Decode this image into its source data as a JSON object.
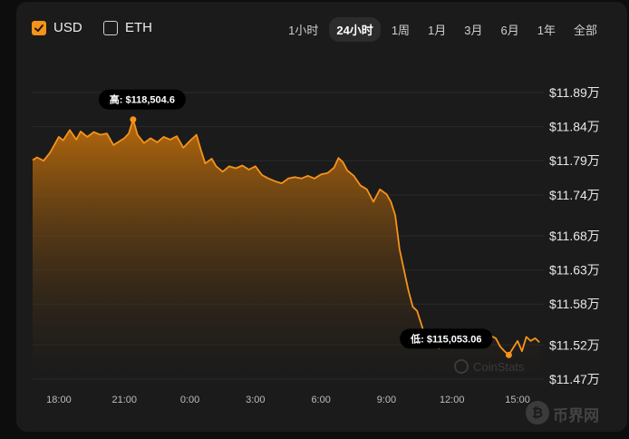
{
  "currency_toggles": [
    {
      "label": "USD",
      "checked": true
    },
    {
      "label": "ETH",
      "checked": false
    }
  ],
  "time_ranges": [
    {
      "label": "1小时",
      "active": false
    },
    {
      "label": "24小时",
      "active": true
    },
    {
      "label": "1周",
      "active": false
    },
    {
      "label": "1月",
      "active": false
    },
    {
      "label": "3月",
      "active": false
    },
    {
      "label": "6月",
      "active": false
    },
    {
      "label": "1年",
      "active": false
    },
    {
      "label": "全部",
      "active": false
    }
  ],
  "watermark": "CoinStats",
  "site_logo": {
    "text": "币界网",
    "icon": "coin-logo-icon"
  },
  "colors": {
    "line": "#f7931a",
    "area_top": "#b86a0c",
    "background": "#1b1b1b"
  },
  "chart_data": {
    "type": "area",
    "currency": "USD",
    "x_tick_labels": [
      "18:00",
      "21:00",
      "0:00",
      "3:00",
      "6:00",
      "9:00",
      "12:00",
      "15:00"
    ],
    "y_tick_labels": [
      "$11.89万",
      "$11.84万",
      "$11.79万",
      "$11.74万",
      "$11.68万",
      "$11.63万",
      "$11.58万",
      "$11.52万",
      "$11.47万"
    ],
    "ylim": [
      114700,
      118900
    ],
    "xlim": [
      16.8,
      40.2
    ],
    "x_unit": "hours (24 = 0:00 next day)",
    "values": [
      [
        16.8,
        117910
      ],
      [
        17.0,
        117950
      ],
      [
        17.3,
        117900
      ],
      [
        17.6,
        118020
      ],
      [
        18.0,
        118250
      ],
      [
        18.2,
        118200
      ],
      [
        18.5,
        118350
      ],
      [
        18.8,
        118210
      ],
      [
        19.0,
        118330
      ],
      [
        19.3,
        118250
      ],
      [
        19.6,
        118320
      ],
      [
        19.9,
        118280
      ],
      [
        20.2,
        118300
      ],
      [
        20.5,
        118130
      ],
      [
        20.8,
        118190
      ],
      [
        21.0,
        118230
      ],
      [
        21.2,
        118300
      ],
      [
        21.4,
        118504.6
      ],
      [
        21.6,
        118280
      ],
      [
        21.9,
        118160
      ],
      [
        22.2,
        118230
      ],
      [
        22.5,
        118170
      ],
      [
        22.8,
        118250
      ],
      [
        23.1,
        118210
      ],
      [
        23.4,
        118260
      ],
      [
        23.7,
        118090
      ],
      [
        24.0,
        118190
      ],
      [
        24.3,
        118280
      ],
      [
        24.5,
        118060
      ],
      [
        24.7,
        117860
      ],
      [
        25.0,
        117930
      ],
      [
        25.2,
        117820
      ],
      [
        25.5,
        117740
      ],
      [
        25.8,
        117820
      ],
      [
        26.1,
        117790
      ],
      [
        26.4,
        117830
      ],
      [
        26.7,
        117770
      ],
      [
        27.0,
        117820
      ],
      [
        27.3,
        117690
      ],
      [
        27.6,
        117640
      ],
      [
        27.9,
        117600
      ],
      [
        28.2,
        117570
      ],
      [
        28.5,
        117640
      ],
      [
        28.8,
        117660
      ],
      [
        29.1,
        117640
      ],
      [
        29.4,
        117680
      ],
      [
        29.7,
        117640
      ],
      [
        30.0,
        117700
      ],
      [
        30.3,
        117720
      ],
      [
        30.6,
        117800
      ],
      [
        30.8,
        117940
      ],
      [
        31.0,
        117880
      ],
      [
        31.2,
        117760
      ],
      [
        31.5,
        117680
      ],
      [
        31.8,
        117540
      ],
      [
        32.1,
        117480
      ],
      [
        32.4,
        117300
      ],
      [
        32.7,
        117480
      ],
      [
        33.0,
        117410
      ],
      [
        33.2,
        117300
      ],
      [
        33.4,
        117100
      ],
      [
        33.6,
        116600
      ],
      [
        33.8,
        116300
      ],
      [
        34.0,
        116000
      ],
      [
        34.2,
        115760
      ],
      [
        34.4,
        115700
      ],
      [
        34.6,
        115500
      ],
      [
        34.8,
        115290
      ],
      [
        35.0,
        115180
      ],
      [
        35.2,
        115240
      ],
      [
        35.4,
        115150
      ],
      [
        35.6,
        115300
      ],
      [
        35.8,
        115200
      ],
      [
        36.0,
        115240
      ],
      [
        36.2,
        115190
      ],
      [
        36.4,
        115260
      ],
      [
        36.6,
        115220
      ],
      [
        36.8,
        115210
      ],
      [
        37.0,
        115330
      ],
      [
        37.2,
        115300
      ],
      [
        37.4,
        115280
      ],
      [
        37.6,
        115210
      ],
      [
        37.8,
        115330
      ],
      [
        38.0,
        115300
      ],
      [
        38.2,
        115180
      ],
      [
        38.4,
        115110
      ],
      [
        38.6,
        115053.06
      ],
      [
        38.8,
        115160
      ],
      [
        39.0,
        115260
      ],
      [
        39.2,
        115110
      ],
      [
        39.4,
        115320
      ],
      [
        39.6,
        115260
      ],
      [
        39.8,
        115300
      ],
      [
        40.0,
        115240
      ]
    ],
    "annotations": [
      {
        "label": "高: $118,504.6",
        "x": 21.4,
        "y": 118504.6,
        "placement": "above"
      },
      {
        "label": "低: $115,053.06",
        "x": 38.6,
        "y": 115053.06,
        "placement": "left"
      }
    ],
    "grid": true,
    "legend": "none"
  }
}
